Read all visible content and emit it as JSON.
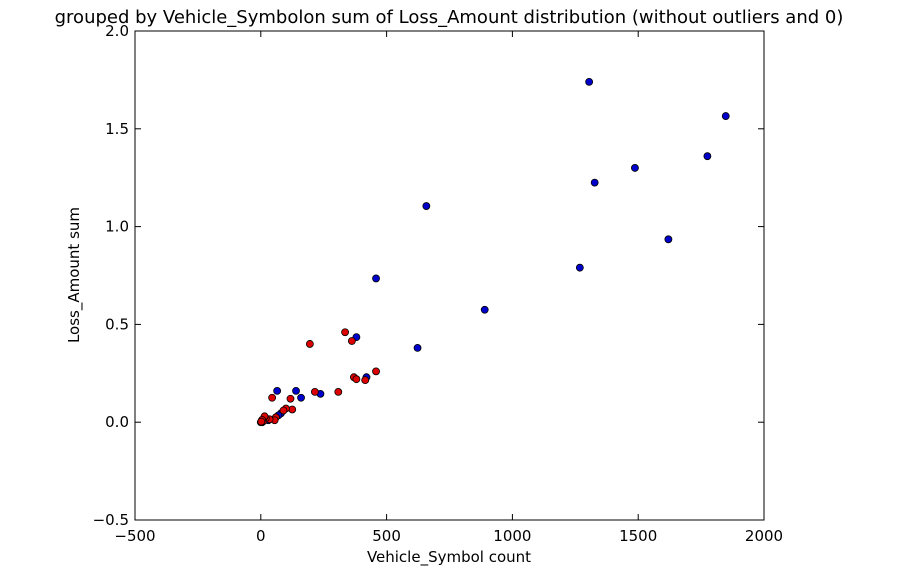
{
  "chart_data": {
    "type": "scatter",
    "title": "grouped by Vehicle_Symbolon sum of Loss_Amount distribution (without outliers and 0)",
    "xlabel": "Vehicle_Symbol count",
    "ylabel": "Loss_Amount sum",
    "xlim": [
      -500,
      2000
    ],
    "ylim": [
      -0.5,
      2.0
    ],
    "xticks": [
      -500,
      0,
      500,
      1000,
      1500,
      2000
    ],
    "xtick_labels": [
      "−500",
      "0",
      "500",
      "1000",
      "1500",
      "2000"
    ],
    "yticks": [
      -0.5,
      0.0,
      0.5,
      1.0,
      1.5,
      2.0
    ],
    "ytick_labels": [
      "−0.5",
      "0.0",
      "0.5",
      "1.0",
      "1.5",
      "2.0"
    ],
    "grid": false,
    "series": [
      {
        "color": "#0000cc",
        "points": [
          [
            1305,
            1.74
          ],
          [
            1848,
            1.565
          ],
          [
            1775,
            1.36
          ],
          [
            1487,
            1.3
          ],
          [
            1327,
            1.225
          ],
          [
            1620,
            0.935
          ],
          [
            1268,
            0.79
          ],
          [
            658,
            1.105
          ],
          [
            458,
            0.735
          ],
          [
            890,
            0.575
          ],
          [
            623,
            0.38
          ],
          [
            380,
            0.435
          ],
          [
            420,
            0.23
          ],
          [
            237,
            0.145
          ],
          [
            160,
            0.125
          ],
          [
            140,
            0.16
          ],
          [
            65,
            0.16
          ],
          [
            80,
            0.045
          ],
          [
            70,
            0.035
          ],
          [
            30,
            0.01
          ],
          [
            5,
            0.0
          ]
        ]
      },
      {
        "color": "#dd0000",
        "points": [
          [
            335,
            0.46
          ],
          [
            362,
            0.415
          ],
          [
            195,
            0.4
          ],
          [
            458,
            0.26
          ],
          [
            370,
            0.23
          ],
          [
            380,
            0.22
          ],
          [
            415,
            0.215
          ],
          [
            215,
            0.155
          ],
          [
            308,
            0.155
          ],
          [
            45,
            0.125
          ],
          [
            118,
            0.12
          ],
          [
            125,
            0.065
          ],
          [
            100,
            0.07
          ],
          [
            90,
            0.06
          ],
          [
            60,
            0.025
          ],
          [
            55,
            0.01
          ],
          [
            35,
            0.015
          ],
          [
            20,
            0.02
          ],
          [
            15,
            0.03
          ],
          [
            10,
            0.005
          ],
          [
            5,
            0.012
          ],
          [
            0,
            0.0
          ],
          [
            2,
            0.003
          ]
        ]
      }
    ]
  }
}
